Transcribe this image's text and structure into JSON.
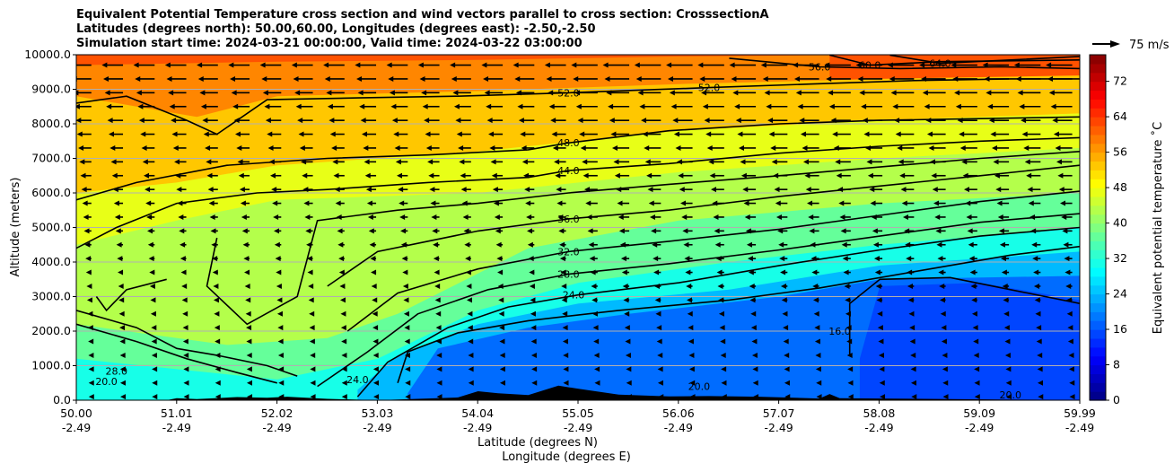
{
  "chart_data": {
    "type": "contour",
    "title_lines": [
      "Equivalent Potential Temperature cross section and wind vectors parallel to cross section: CrosssectionA",
      "Latitudes (degrees north): 50.00,60.00, Longitudes (degrees east): -2.50,-2.50",
      "Simulation start time: 2024-03-21 00:00:00, Valid time: 2024-03-22 03:00:00"
    ],
    "xlabel": "Latitude (degrees N)",
    "xlabel2": "Longitude (degrees E)",
    "ylabel": "Altitude (meters)",
    "x_tick_lat": [
      "50.00",
      "51.01",
      "52.02",
      "53.03",
      "54.04",
      "55.05",
      "56.06",
      "57.07",
      "58.08",
      "59.09",
      "59.99"
    ],
    "x_tick_lon": [
      "-2.49",
      "-2.49",
      "-2.49",
      "-2.49",
      "-2.49",
      "-2.49",
      "-2.49",
      "-2.49",
      "-2.49",
      "-2.49",
      "-2.49"
    ],
    "xlim": [
      50.0,
      59.99
    ],
    "y_ticks": [
      "0.0",
      "1000.0",
      "2000.0",
      "3000.0",
      "4000.0",
      "5000.0",
      "6000.0",
      "7000.0",
      "8000.0",
      "9000.0",
      "10000.0"
    ],
    "ylim": [
      0,
      10000
    ],
    "grid": "horizontal",
    "colorbar": {
      "label": "Equivalent potential temperature $^\\circ$C",
      "label_display": "Equivalent potential temperature ˚C",
      "ticks": [
        "0",
        "8",
        "16",
        "24",
        "32",
        "40",
        "48",
        "56",
        "64",
        "72"
      ],
      "range": [
        0,
        78
      ]
    },
    "quiver_key": {
      "label": "75 m/s"
    },
    "contour_labels": [
      {
        "text": "52.0",
        "x": 54.9,
        "y": 8900
      },
      {
        "text": "52.0",
        "x": 56.3,
        "y": 9050
      },
      {
        "text": "56.0",
        "x": 57.4,
        "y": 9650
      },
      {
        "text": "60.0",
        "x": 57.9,
        "y": 9700
      },
      {
        "text": "64.0",
        "x": 58.6,
        "y": 9750
      },
      {
        "text": "48.0",
        "x": 54.9,
        "y": 7450
      },
      {
        "text": "44.0",
        "x": 54.9,
        "y": 6650
      },
      {
        "text": "36.0",
        "x": 54.9,
        "y": 5250
      },
      {
        "text": "32.0",
        "x": 54.9,
        "y": 4300
      },
      {
        "text": "28.0",
        "x": 54.9,
        "y": 3650
      },
      {
        "text": "24.0",
        "x": 54.95,
        "y": 3050
      },
      {
        "text": "16.0",
        "x": 57.6,
        "y": 2000
      },
      {
        "text": "20.0",
        "x": 59.3,
        "y": 150
      },
      {
        "text": "24.0",
        "x": 52.8,
        "y": 600
      },
      {
        "text": "20.0",
        "x": 50.3,
        "y": 550
      },
      {
        "text": "28.0",
        "x": 50.4,
        "y": 850
      },
      {
        "text": "20.0",
        "x": 56.2,
        "y": 400
      }
    ],
    "contour_lines": [
      {
        "level": 16,
        "points": [
          [
            57.7,
            1300
          ],
          [
            57.7,
            2800
          ],
          [
            58.0,
            3500
          ],
          [
            58.7,
            3550
          ],
          [
            59.3,
            3200
          ],
          [
            59.99,
            2800
          ]
        ]
      },
      {
        "level": 20,
        "points": [
          [
            53.2,
            500
          ],
          [
            53.3,
            1400
          ],
          [
            53.8,
            1950
          ],
          [
            54.5,
            2300
          ],
          [
            55.4,
            2600
          ],
          [
            56.5,
            2900
          ],
          [
            57.4,
            3250
          ],
          [
            58.5,
            3800
          ],
          [
            59.3,
            4200
          ],
          [
            59.99,
            4450
          ]
        ]
      },
      {
        "level": 24,
        "points": [
          [
            52.8,
            100
          ],
          [
            53.1,
            1100
          ],
          [
            53.7,
            2100
          ],
          [
            54.3,
            2700
          ],
          [
            55.0,
            3050
          ],
          [
            56.0,
            3400
          ],
          [
            57.0,
            3900
          ],
          [
            58.0,
            4350
          ],
          [
            59.0,
            4750
          ],
          [
            59.99,
            5000
          ]
        ]
      },
      {
        "level": 28,
        "points": [
          [
            52.4,
            400
          ],
          [
            52.9,
            1400
          ],
          [
            53.4,
            2500
          ],
          [
            54.1,
            3200
          ],
          [
            54.9,
            3650
          ],
          [
            55.9,
            3950
          ],
          [
            57.0,
            4350
          ],
          [
            58.0,
            4750
          ],
          [
            59.0,
            5150
          ],
          [
            59.99,
            5400
          ]
        ]
      },
      {
        "level": 32,
        "points": [
          [
            52.7,
            2000
          ],
          [
            53.2,
            3100
          ],
          [
            54.0,
            3800
          ],
          [
            54.9,
            4300
          ],
          [
            55.9,
            4600
          ],
          [
            57.0,
            4950
          ],
          [
            58.0,
            5350
          ],
          [
            59.0,
            5750
          ],
          [
            59.99,
            6050
          ]
        ]
      },
      {
        "level": 36,
        "points": [
          [
            52.5,
            3300
          ],
          [
            53.0,
            4300
          ],
          [
            54.0,
            4900
          ],
          [
            54.9,
            5250
          ],
          [
            55.9,
            5500
          ],
          [
            57.0,
            5900
          ],
          [
            58.0,
            6200
          ],
          [
            59.0,
            6500
          ],
          [
            59.99,
            6800
          ]
        ]
      },
      {
        "level": 40,
        "points": [
          [
            51.4,
            4700
          ],
          [
            51.3,
            3300
          ],
          [
            51.7,
            2200
          ],
          [
            52.2,
            3000
          ],
          [
            52.4,
            5200
          ],
          [
            53.2,
            5500
          ],
          [
            54.0,
            5700
          ],
          [
            54.9,
            6000
          ],
          [
            55.9,
            6250
          ],
          [
            57.0,
            6500
          ],
          [
            58.0,
            6750
          ],
          [
            59.0,
            7000
          ],
          [
            59.99,
            7200
          ]
        ]
      },
      {
        "level": 44,
        "points": [
          [
            50.0,
            4400
          ],
          [
            50.4,
            5000
          ],
          [
            51.0,
            5700
          ],
          [
            51.8,
            6000
          ],
          [
            52.5,
            6100
          ],
          [
            53.5,
            6300
          ],
          [
            54.5,
            6450
          ],
          [
            54.9,
            6650
          ],
          [
            55.9,
            6850
          ],
          [
            57.0,
            7150
          ],
          [
            58.0,
            7350
          ],
          [
            59.0,
            7500
          ],
          [
            59.99,
            7600
          ]
        ]
      },
      {
        "level": 48,
        "points": [
          [
            50.0,
            5800
          ],
          [
            50.6,
            6300
          ],
          [
            51.5,
            6800
          ],
          [
            52.5,
            7000
          ],
          [
            53.5,
            7100
          ],
          [
            54.5,
            7250
          ],
          [
            54.9,
            7450
          ],
          [
            55.9,
            7800
          ],
          [
            57.0,
            8000
          ],
          [
            58.0,
            8100
          ],
          [
            59.0,
            8150
          ],
          [
            59.99,
            8200
          ]
        ]
      },
      {
        "level": 52,
        "points": [
          [
            50.0,
            8600
          ],
          [
            50.5,
            8800
          ],
          [
            51.1,
            8100
          ],
          [
            51.4,
            7700
          ],
          [
            51.9,
            8700
          ],
          [
            52.8,
            8750
          ],
          [
            53.8,
            8800
          ],
          [
            54.9,
            8900
          ],
          [
            56.3,
            9050
          ],
          [
            57.3,
            9150
          ],
          [
            58.3,
            9250
          ],
          [
            59.3,
            9300
          ],
          [
            59.99,
            9300
          ]
        ]
      },
      {
        "level": 56,
        "points": [
          [
            56.5,
            9900
          ],
          [
            57.4,
            9650
          ],
          [
            58.2,
            9600
          ],
          [
            59.2,
            9650
          ],
          [
            59.99,
            9600
          ]
        ]
      },
      {
        "level": 60,
        "points": [
          [
            57.5,
            9990
          ],
          [
            57.9,
            9700
          ],
          [
            58.6,
            9800
          ],
          [
            59.99,
            9850
          ]
        ]
      },
      {
        "level": 64,
        "points": [
          [
            58.1,
            9990
          ],
          [
            58.6,
            9750
          ],
          [
            59.3,
            9850
          ],
          [
            59.99,
            9950
          ]
        ]
      },
      {
        "level": 24,
        "points": [
          [
            50.0,
            2600
          ],
          [
            50.6,
            2100
          ],
          [
            51.0,
            1500
          ],
          [
            51.4,
            1300
          ],
          [
            51.9,
            1000
          ],
          [
            52.2,
            700
          ]
        ]
      },
      {
        "level": 28,
        "points": [
          [
            50.0,
            2200
          ],
          [
            50.6,
            1700
          ],
          [
            51.1,
            1200
          ],
          [
            51.6,
            800
          ],
          [
            52.0,
            500
          ]
        ]
      },
      {
        "level": 32,
        "points": [
          [
            50.2,
            3000
          ],
          [
            50.3,
            2600
          ],
          [
            50.5,
            3200
          ],
          [
            50.9,
            3500
          ]
        ]
      }
    ],
    "field_bands": [
      {
        "top_points": [
          [
            50.0,
            9700
          ],
          [
            52.0,
            9800
          ],
          [
            54.0,
            9850
          ],
          [
            56.0,
            9950
          ],
          [
            57.5,
            9990
          ]
        ],
        "value": 58
      },
      {
        "top_points": [
          [
            50.0,
            8800
          ],
          [
            51.2,
            8200
          ],
          [
            52.0,
            8800
          ],
          [
            54.0,
            8950
          ],
          [
            56.0,
            9150
          ],
          [
            58.0,
            9300
          ],
          [
            59.99,
            9400
          ]
        ],
        "value": 53
      },
      {
        "top_points": [
          [
            50.0,
            6000
          ],
          [
            51.0,
            6300
          ],
          [
            52.0,
            6800
          ],
          [
            54.0,
            7200
          ],
          [
            56.0,
            7800
          ],
          [
            58.0,
            8100
          ],
          [
            59.99,
            8300
          ]
        ],
        "value": 47
      },
      {
        "top_points": [
          [
            50.0,
            4500
          ],
          [
            51.0,
            5200
          ],
          [
            52.0,
            5800
          ],
          [
            54.0,
            6000
          ],
          [
            56.0,
            6600
          ],
          [
            58.0,
            7000
          ],
          [
            59.99,
            7300
          ]
        ],
        "value": 43
      },
      {
        "top_points": [
          [
            50.0,
            2200
          ],
          [
            51.5,
            1600
          ],
          [
            52.5,
            1800
          ],
          [
            53.2,
            2500
          ],
          [
            54.5,
            4400
          ],
          [
            56.0,
            5200
          ],
          [
            58.0,
            5700
          ],
          [
            59.99,
            6000
          ]
        ],
        "value": 37
      },
      {
        "top_points": [
          [
            50.0,
            1200
          ],
          [
            51.0,
            900
          ],
          [
            52.0,
            600
          ],
          [
            53.0,
            1200
          ],
          [
            54.0,
            2600
          ],
          [
            55.0,
            3400
          ],
          [
            56.5,
            4000
          ],
          [
            58.0,
            4500
          ],
          [
            59.99,
            5000
          ]
        ],
        "value": 31
      },
      {
        "top_points": [
          [
            52.8,
            300
          ],
          [
            53.2,
            1300
          ],
          [
            54.0,
            2200
          ],
          [
            55.0,
            2800
          ],
          [
            56.5,
            3200
          ],
          [
            58.0,
            3900
          ],
          [
            59.99,
            4300
          ]
        ],
        "value": 24
      },
      {
        "top_points": [
          [
            53.3,
            200
          ],
          [
            53.6,
            1500
          ],
          [
            54.5,
            2100
          ],
          [
            55.5,
            2500
          ],
          [
            57.0,
            3000
          ],
          [
            58.0,
            3500
          ],
          [
            59.99,
            3600
          ]
        ],
        "value": 18
      },
      {
        "top_points": [
          [
            57.8,
            1200
          ],
          [
            58.0,
            3300
          ],
          [
            59.0,
            3400
          ],
          [
            59.99,
            2900
          ]
        ],
        "value": 15
      }
    ],
    "terrain": [
      [
        50.0,
        0
      ],
      [
        50.9,
        0
      ],
      [
        51.0,
        60
      ],
      [
        51.2,
        30
      ],
      [
        51.6,
        90
      ],
      [
        51.9,
        70
      ],
      [
        52.1,
        100
      ],
      [
        52.5,
        40
      ],
      [
        53.0,
        0
      ],
      [
        53.8,
        80
      ],
      [
        54.0,
        260
      ],
      [
        54.2,
        200
      ],
      [
        54.5,
        150
      ],
      [
        54.7,
        330
      ],
      [
        54.8,
        420
      ],
      [
        55.0,
        330
      ],
      [
        55.4,
        160
      ],
      [
        55.9,
        110
      ],
      [
        56.3,
        120
      ],
      [
        56.8,
        100
      ],
      [
        57.4,
        50
      ],
      [
        57.5,
        180
      ],
      [
        57.6,
        60
      ],
      [
        58.0,
        50
      ],
      [
        59.2,
        20
      ],
      [
        59.99,
        10
      ]
    ],
    "wind_field": {
      "direction": "toward -x (southward)",
      "columns": 32,
      "rows": 26
    }
  }
}
